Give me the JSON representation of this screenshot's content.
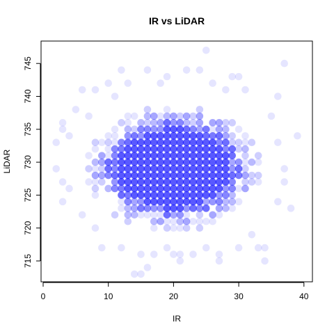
{
  "chart_data": {
    "type": "scatter",
    "title": "IR vs LiDAR",
    "xlabel": "IR",
    "ylabel": "LiDAR",
    "xlim": [
      0,
      41
    ],
    "ylim": [
      712,
      748
    ],
    "xticks": [
      0,
      10,
      20,
      30,
      40
    ],
    "yticks": [
      715,
      720,
      725,
      730,
      735,
      740,
      745
    ],
    "x_tick_labels": [
      "0",
      "10",
      "20",
      "30",
      "40"
    ],
    "y_tick_labels": [
      "715",
      "720",
      "725",
      "730",
      "735",
      "740",
      "745"
    ],
    "grid": false,
    "legend": "none",
    "point_color": "#0000ff",
    "point_alpha": 0.1,
    "core_region": {
      "x_range": [
        9,
        29
      ],
      "y_range": [
        721,
        738
      ],
      "point_density": "saturated"
    },
    "outlying_points": [
      {
        "x": 2,
        "y": 733
      },
      {
        "x": 2,
        "y": 729
      },
      {
        "x": 3,
        "y": 736
      },
      {
        "x": 3,
        "y": 735
      },
      {
        "x": 3,
        "y": 727
      },
      {
        "x": 3,
        "y": 724
      },
      {
        "x": 4,
        "y": 734
      },
      {
        "x": 4,
        "y": 726
      },
      {
        "x": 5,
        "y": 738
      },
      {
        "x": 6,
        "y": 741
      },
      {
        "x": 6,
        "y": 722
      },
      {
        "x": 7,
        "y": 737
      },
      {
        "x": 8,
        "y": 741
      },
      {
        "x": 8,
        "y": 720
      },
      {
        "x": 9,
        "y": 717
      },
      {
        "x": 10,
        "y": 742
      },
      {
        "x": 11,
        "y": 740
      },
      {
        "x": 12,
        "y": 744
      },
      {
        "x": 12,
        "y": 717
      },
      {
        "x": 13,
        "y": 742
      },
      {
        "x": 14,
        "y": 713
      },
      {
        "x": 15,
        "y": 713
      },
      {
        "x": 15,
        "y": 716
      },
      {
        "x": 16,
        "y": 744
      },
      {
        "x": 16,
        "y": 714
      },
      {
        "x": 17,
        "y": 716
      },
      {
        "x": 18,
        "y": 742
      },
      {
        "x": 19,
        "y": 743
      },
      {
        "x": 19,
        "y": 717
      },
      {
        "x": 20,
        "y": 716
      },
      {
        "x": 21,
        "y": 716
      },
      {
        "x": 21,
        "y": 715
      },
      {
        "x": 22,
        "y": 744
      },
      {
        "x": 23,
        "y": 716
      },
      {
        "x": 24,
        "y": 744
      },
      {
        "x": 25,
        "y": 747
      },
      {
        "x": 25,
        "y": 717
      },
      {
        "x": 26,
        "y": 742
      },
      {
        "x": 27,
        "y": 716
      },
      {
        "x": 27,
        "y": 715
      },
      {
        "x": 28,
        "y": 741
      },
      {
        "x": 29,
        "y": 743
      },
      {
        "x": 30,
        "y": 743
      },
      {
        "x": 30,
        "y": 717
      },
      {
        "x": 31,
        "y": 741
      },
      {
        "x": 32,
        "y": 719
      },
      {
        "x": 33,
        "y": 717
      },
      {
        "x": 34,
        "y": 717
      },
      {
        "x": 34,
        "y": 715
      },
      {
        "x": 35,
        "y": 737
      },
      {
        "x": 36,
        "y": 740
      },
      {
        "x": 36,
        "y": 733
      },
      {
        "x": 36,
        "y": 724
      },
      {
        "x": 37,
        "y": 745
      },
      {
        "x": 37,
        "y": 729
      },
      {
        "x": 37,
        "y": 727
      },
      {
        "x": 38,
        "y": 723
      },
      {
        "x": 39,
        "y": 734
      }
    ]
  }
}
